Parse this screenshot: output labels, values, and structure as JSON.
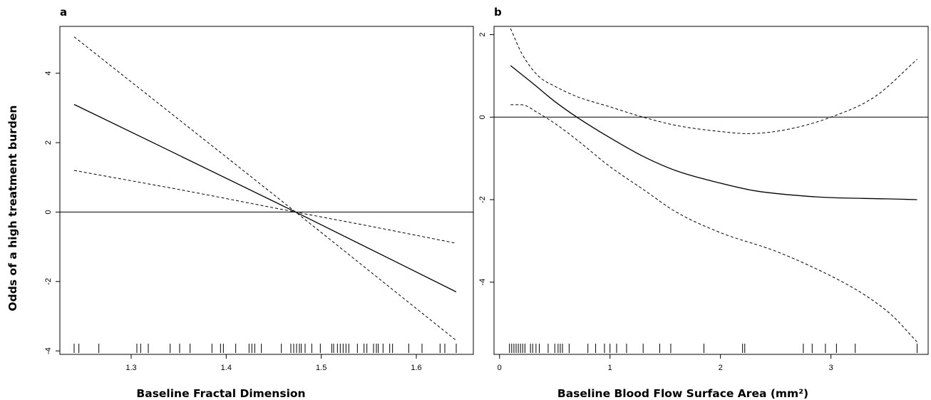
{
  "chart_data": [
    {
      "type": "line",
      "panel_label": "a",
      "xlabel": "Baseline Fractal Dimension",
      "ylabel": "Odds of a high treatment burden",
      "xlim": [
        1.225,
        1.66
      ],
      "ylim": [
        -4.1,
        5.35
      ],
      "x_ticks": [
        1.3,
        1.4,
        1.5,
        1.6
      ],
      "x_tick_labels": [
        "1.3",
        "1.4",
        "1.5",
        "1.6"
      ],
      "y_ticks": [
        -4,
        -2,
        0,
        2,
        4
      ],
      "y_tick_labels": [
        "-4",
        "-2",
        "0",
        "2",
        "4"
      ],
      "reference_line_y": 0,
      "grid": false,
      "series": [
        {
          "role": "fit",
          "style": "solid",
          "x": [
            1.24,
            1.473,
            1.642
          ],
          "y": [
            3.1,
            0.0,
            -2.3
          ]
        },
        {
          "role": "upper",
          "style": "dashed",
          "x": [
            1.24,
            1.473,
            1.642
          ],
          "y": [
            5.05,
            0.0,
            -3.7
          ]
        },
        {
          "role": "lower",
          "style": "dashed",
          "x": [
            1.24,
            1.36,
            1.473,
            1.55,
            1.642
          ],
          "y": [
            1.2,
            0.6,
            0.0,
            -0.4,
            -0.9
          ]
        }
      ],
      "rug": [
        1.24,
        1.245,
        1.266,
        1.306,
        1.31,
        1.318,
        1.341,
        1.351,
        1.362,
        1.385,
        1.394,
        1.397,
        1.41,
        1.424,
        1.427,
        1.43,
        1.437,
        1.458,
        1.468,
        1.471,
        1.474,
        1.477,
        1.479,
        1.483,
        1.49,
        1.499,
        1.511,
        1.513,
        1.517,
        1.52,
        1.523,
        1.526,
        1.529,
        1.538,
        1.545,
        1.548,
        1.555,
        1.558,
        1.56,
        1.565,
        1.572,
        1.575,
        1.592,
        1.606,
        1.625,
        1.63,
        1.642
      ]
    },
    {
      "type": "line",
      "panel_label": "b",
      "xlabel": "Baseline Blood Flow Surface Area (mm²)",
      "ylabel": "",
      "xlim": [
        -0.05,
        3.88
      ],
      "ylim": [
        -5.75,
        2.2
      ],
      "x_ticks": [
        0,
        1,
        2,
        3
      ],
      "x_tick_labels": [
        "0",
        "1",
        "2",
        "3"
      ],
      "y_ticks": [
        -4,
        -2,
        0,
        2
      ],
      "y_tick_labels": [
        "-4",
        "-2",
        "0",
        "2"
      ],
      "reference_line_y": 0,
      "grid": false,
      "series": [
        {
          "role": "fit",
          "style": "solid",
          "x": [
            0.1,
            0.3,
            0.5,
            0.7,
            1.0,
            1.3,
            1.6,
            2.0,
            2.3,
            2.7,
            3.0,
            3.5,
            3.78
          ],
          "y": [
            1.25,
            0.82,
            0.38,
            0.0,
            -0.5,
            -0.95,
            -1.3,
            -1.6,
            -1.78,
            -1.9,
            -1.95,
            -1.98,
            -2.0
          ]
        },
        {
          "role": "upper",
          "style": "dashed",
          "x": [
            0.1,
            0.2,
            0.35,
            0.5,
            0.7,
            1.0,
            1.3,
            1.6,
            2.0,
            2.25,
            2.6,
            3.0,
            3.4,
            3.78
          ],
          "y": [
            2.15,
            1.55,
            1.0,
            0.75,
            0.5,
            0.25,
            0.0,
            -0.2,
            -0.35,
            -0.4,
            -0.3,
            0.0,
            0.5,
            1.4
          ]
        },
        {
          "role": "lower",
          "style": "dashed",
          "x": [
            0.1,
            0.2,
            0.35,
            0.5,
            0.7,
            1.0,
            1.3,
            1.6,
            2.0,
            2.5,
            3.0,
            3.3,
            3.55,
            3.78
          ],
          "y": [
            0.3,
            0.3,
            0.1,
            -0.15,
            -0.55,
            -1.2,
            -1.75,
            -2.3,
            -2.8,
            -3.25,
            -3.85,
            -4.3,
            -4.8,
            -5.45
          ]
        }
      ],
      "rug": [
        0.09,
        0.11,
        0.13,
        0.15,
        0.17,
        0.19,
        0.21,
        0.23,
        0.28,
        0.3,
        0.33,
        0.36,
        0.44,
        0.5,
        0.53,
        0.55,
        0.57,
        0.63,
        0.8,
        0.87,
        0.95,
        1.0,
        1.06,
        1.15,
        1.3,
        1.45,
        1.55,
        1.85,
        2.2,
        2.22,
        2.75,
        2.83,
        2.95,
        3.05,
        3.22,
        3.78
      ]
    }
  ]
}
